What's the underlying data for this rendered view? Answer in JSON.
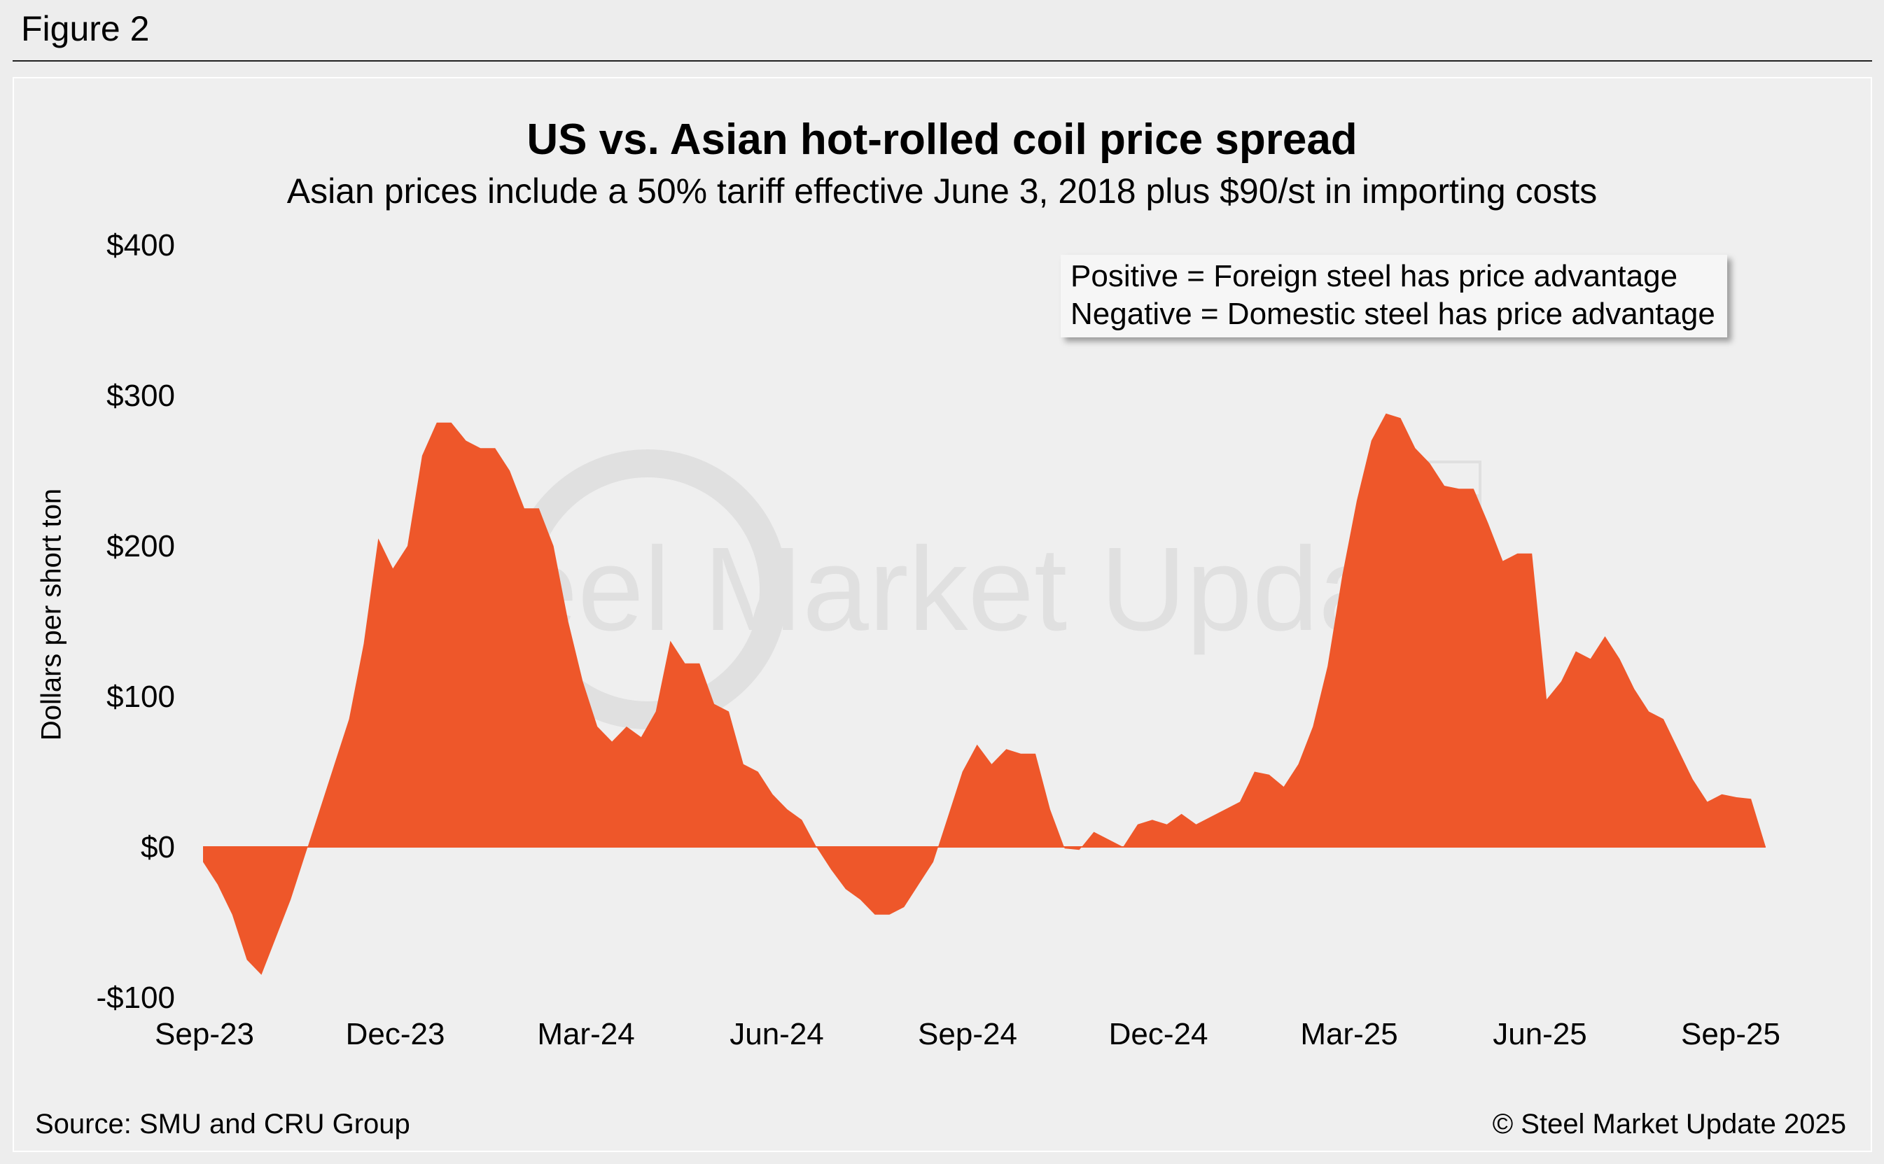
{
  "figure_label": "Figure 2",
  "source": "Source: SMU and CRU Group",
  "copyright": "© Steel Market Update 2025",
  "watermark": "Steel Market Update",
  "watermark_logo": "CRU",
  "colors": {
    "area": "#ee572a",
    "background": "#efefef",
    "watermark": "#e0e0e0"
  },
  "chart_data": {
    "type": "area",
    "title": "US vs. Asian hot-rolled coil price spread",
    "subtitle": "Asian prices include a 50% tariff effective June 3, 2018 plus $90/st in importing costs",
    "ylabel": "Dollars per short ton",
    "xlabel": "",
    "ylim": [
      -100,
      400
    ],
    "yticks": [
      -100,
      0,
      100,
      200,
      300,
      400
    ],
    "ytick_labels": [
      "-$100",
      "$0",
      "$100",
      "$200",
      "$300",
      "$400"
    ],
    "xtick_labels": [
      "Sep-23",
      "Dec-23",
      "Mar-24",
      "Jun-24",
      "Sep-24",
      "Dec-24",
      "Mar-25",
      "Jun-25",
      "Sep-25"
    ],
    "grid": false,
    "legend_lines": [
      "Positive = Foreign steel has price advantage",
      "Negative = Domestic steel has price advantage"
    ],
    "series": [
      {
        "values": [
          -10,
          -25,
          -45,
          -75,
          -85,
          -60,
          -35,
          -5,
          25,
          55,
          85,
          135,
          205,
          185,
          200,
          260,
          282,
          282,
          270,
          265,
          265,
          250,
          225,
          225,
          200,
          150,
          110,
          80,
          70,
          80,
          73,
          90,
          137,
          122,
          122,
          95,
          90,
          55,
          50,
          35,
          25,
          18,
          0,
          -15,
          -28,
          -35,
          -45,
          -45,
          -40,
          -25,
          -10,
          20,
          50,
          68,
          55,
          65,
          62,
          62,
          25,
          -1,
          -2,
          10,
          5,
          0,
          15,
          18,
          15,
          22,
          15,
          20,
          25,
          30,
          50,
          48,
          40,
          55,
          80,
          120,
          180,
          230,
          270,
          288,
          285,
          265,
          255,
          240,
          238,
          238,
          215,
          190,
          195,
          195,
          98,
          110,
          130,
          125,
          140,
          125,
          105,
          90,
          85,
          65,
          45,
          30,
          35,
          33,
          32,
          0
        ],
        "x_start": "Sep-23",
        "x_end": "Sep-25"
      }
    ]
  }
}
